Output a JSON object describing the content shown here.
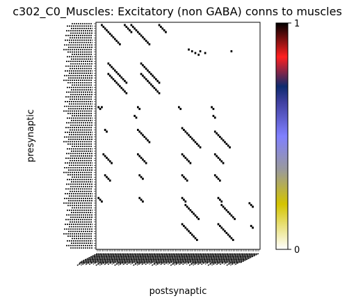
{
  "chart_data": {
    "type": "heatmap",
    "title": "c302_C0_Muscles: Excitatory (non GABA) conns to muscles",
    "xlabel": "postsynaptic",
    "ylabel": "presynaptic",
    "tick_labels_legible": false,
    "grid": false,
    "colorbar": {
      "position": "right",
      "min_label": "0",
      "max_label": "1",
      "stops": [
        {
          "v": 0.0,
          "color": "#ffffff"
        },
        {
          "v": 0.2,
          "color": "#d4c400"
        },
        {
          "v": 0.35,
          "color": "#9a9a9a"
        },
        {
          "v": 0.5,
          "color": "#8080ff"
        },
        {
          "v": 0.65,
          "color": "#4040a0"
        },
        {
          "v": 0.72,
          "color": "#0e2a6e"
        },
        {
          "v": 0.85,
          "color": "#ff2020"
        },
        {
          "v": 1.0,
          "color": "#000000"
        }
      ]
    },
    "grid_size": {
      "rows": 96,
      "cols": 96
    },
    "cells": [
      [
        1,
        3
      ],
      [
        2,
        4
      ],
      [
        3,
        5
      ],
      [
        4,
        6
      ],
      [
        5,
        7
      ],
      [
        6,
        8
      ],
      [
        7,
        9
      ],
      [
        8,
        10
      ],
      [
        9,
        11
      ],
      [
        10,
        12
      ],
      [
        11,
        13
      ],
      [
        12,
        14
      ],
      [
        1,
        17
      ],
      [
        2,
        18
      ],
      [
        3,
        19
      ],
      [
        4,
        20
      ],
      [
        5,
        21
      ],
      [
        1,
        21
      ],
      [
        2,
        22
      ],
      [
        3,
        23
      ],
      [
        4,
        24
      ],
      [
        5,
        25
      ],
      [
        6,
        26
      ],
      [
        7,
        27
      ],
      [
        8,
        28
      ],
      [
        9,
        29
      ],
      [
        10,
        30
      ],
      [
        11,
        31
      ],
      [
        12,
        32
      ],
      [
        1,
        38
      ],
      [
        2,
        39
      ],
      [
        3,
        40
      ],
      [
        4,
        41
      ],
      [
        5,
        42
      ],
      [
        15,
        56
      ],
      [
        16,
        58
      ],
      [
        17,
        60
      ],
      [
        18,
        62
      ],
      [
        16,
        63
      ],
      [
        17,
        66
      ],
      [
        16,
        82
      ],
      [
        23,
        7
      ],
      [
        24,
        8
      ],
      [
        25,
        9
      ],
      [
        26,
        10
      ],
      [
        27,
        11
      ],
      [
        28,
        12
      ],
      [
        29,
        13
      ],
      [
        30,
        14
      ],
      [
        31,
        15
      ],
      [
        32,
        16
      ],
      [
        33,
        17
      ],
      [
        34,
        18
      ],
      [
        23,
        27
      ],
      [
        24,
        28
      ],
      [
        25,
        29
      ],
      [
        26,
        30
      ],
      [
        27,
        31
      ],
      [
        28,
        32
      ],
      [
        29,
        33
      ],
      [
        30,
        34
      ],
      [
        31,
        35
      ],
      [
        32,
        36
      ],
      [
        33,
        37
      ],
      [
        34,
        38
      ],
      [
        29,
        7
      ],
      [
        30,
        8
      ],
      [
        31,
        9
      ],
      [
        32,
        10
      ],
      [
        33,
        11
      ],
      [
        34,
        12
      ],
      [
        35,
        13
      ],
      [
        36,
        14
      ],
      [
        37,
        15
      ],
      [
        38,
        16
      ],
      [
        39,
        17
      ],
      [
        40,
        18
      ],
      [
        29,
        27
      ],
      [
        30,
        28
      ],
      [
        31,
        29
      ],
      [
        32,
        30
      ],
      [
        33,
        31
      ],
      [
        34,
        32
      ],
      [
        35,
        33
      ],
      [
        36,
        34
      ],
      [
        37,
        35
      ],
      [
        38,
        36
      ],
      [
        39,
        37
      ],
      [
        40,
        38
      ],
      [
        48,
        1
      ],
      [
        49,
        2
      ],
      [
        48,
        3
      ],
      [
        53,
        23
      ],
      [
        54,
        24
      ],
      [
        48,
        25
      ],
      [
        49,
        26
      ],
      [
        48,
        50
      ],
      [
        49,
        51
      ],
      [
        53,
        71
      ],
      [
        54,
        72
      ],
      [
        48,
        70
      ],
      [
        49,
        71
      ],
      [
        61,
        5
      ],
      [
        62,
        6
      ],
      [
        61,
        25
      ],
      [
        62,
        26
      ],
      [
        63,
        27
      ],
      [
        64,
        28
      ],
      [
        65,
        29
      ],
      [
        66,
        30
      ],
      [
        67,
        31
      ],
      [
        68,
        32
      ],
      [
        60,
        52
      ],
      [
        61,
        53
      ],
      [
        62,
        54
      ],
      [
        63,
        55
      ],
      [
        64,
        56
      ],
      [
        65,
        57
      ],
      [
        66,
        58
      ],
      [
        67,
        59
      ],
      [
        68,
        60
      ],
      [
        69,
        61
      ],
      [
        70,
        62
      ],
      [
        71,
        63
      ],
      [
        62,
        72
      ],
      [
        63,
        73
      ],
      [
        64,
        74
      ],
      [
        65,
        75
      ],
      [
        66,
        76
      ],
      [
        67,
        77
      ],
      [
        68,
        78
      ],
      [
        69,
        79
      ],
      [
        70,
        80
      ],
      [
        71,
        81
      ],
      [
        75,
        4
      ],
      [
        76,
        5
      ],
      [
        77,
        6
      ],
      [
        78,
        7
      ],
      [
        79,
        8
      ],
      [
        80,
        9
      ],
      [
        75,
        25
      ],
      [
        76,
        26
      ],
      [
        77,
        27
      ],
      [
        78,
        28
      ],
      [
        79,
        29
      ],
      [
        80,
        30
      ],
      [
        75,
        52
      ],
      [
        76,
        53
      ],
      [
        77,
        54
      ],
      [
        78,
        55
      ],
      [
        79,
        56
      ],
      [
        80,
        57
      ],
      [
        75,
        72
      ],
      [
        76,
        73
      ],
      [
        77,
        74
      ],
      [
        78,
        75
      ],
      [
        79,
        76
      ],
      [
        80,
        77
      ],
      [
        87,
        5
      ],
      [
        88,
        6
      ],
      [
        89,
        7
      ],
      [
        90,
        8
      ],
      [
        87,
        26
      ],
      [
        88,
        27
      ],
      [
        89,
        28
      ],
      [
        87,
        52
      ],
      [
        88,
        53
      ],
      [
        89,
        54
      ],
      [
        90,
        55
      ],
      [
        87,
        72
      ],
      [
        88,
        73
      ],
      [
        89,
        74
      ],
      [
        90,
        75
      ],
      [
        100,
        1
      ],
      [
        101,
        2
      ],
      [
        102,
        3
      ],
      [
        100,
        26
      ],
      [
        101,
        27
      ],
      [
        102,
        28
      ],
      [
        100,
        52
      ],
      [
        101,
        53
      ],
      [
        102,
        54
      ],
      [
        100,
        74
      ],
      [
        101,
        75
      ],
      [
        102,
        76
      ],
      [
        104,
        54
      ],
      [
        105,
        55
      ],
      [
        106,
        56
      ],
      [
        107,
        57
      ],
      [
        108,
        58
      ],
      [
        109,
        59
      ],
      [
        110,
        60
      ],
      [
        111,
        61
      ],
      [
        112,
        62
      ],
      [
        104,
        76
      ],
      [
        105,
        77
      ],
      [
        106,
        78
      ],
      [
        107,
        79
      ],
      [
        108,
        80
      ],
      [
        109,
        81
      ],
      [
        110,
        82
      ],
      [
        111,
        83
      ],
      [
        112,
        84
      ],
      [
        103,
        93
      ],
      [
        104,
        94
      ],
      [
        105,
        95
      ],
      [
        115,
        52
      ],
      [
        116,
        53
      ],
      [
        117,
        54
      ],
      [
        118,
        55
      ],
      [
        119,
        56
      ],
      [
        120,
        57
      ],
      [
        121,
        58
      ],
      [
        122,
        59
      ],
      [
        123,
        60
      ],
      [
        124,
        61
      ],
      [
        115,
        74
      ],
      [
        116,
        75
      ],
      [
        117,
        76
      ],
      [
        118,
        77
      ],
      [
        119,
        78
      ],
      [
        120,
        79
      ],
      [
        121,
        80
      ],
      [
        122,
        81
      ],
      [
        123,
        82
      ],
      [
        124,
        83
      ],
      [
        116,
        94
      ],
      [
        117,
        95
      ]
    ]
  }
}
